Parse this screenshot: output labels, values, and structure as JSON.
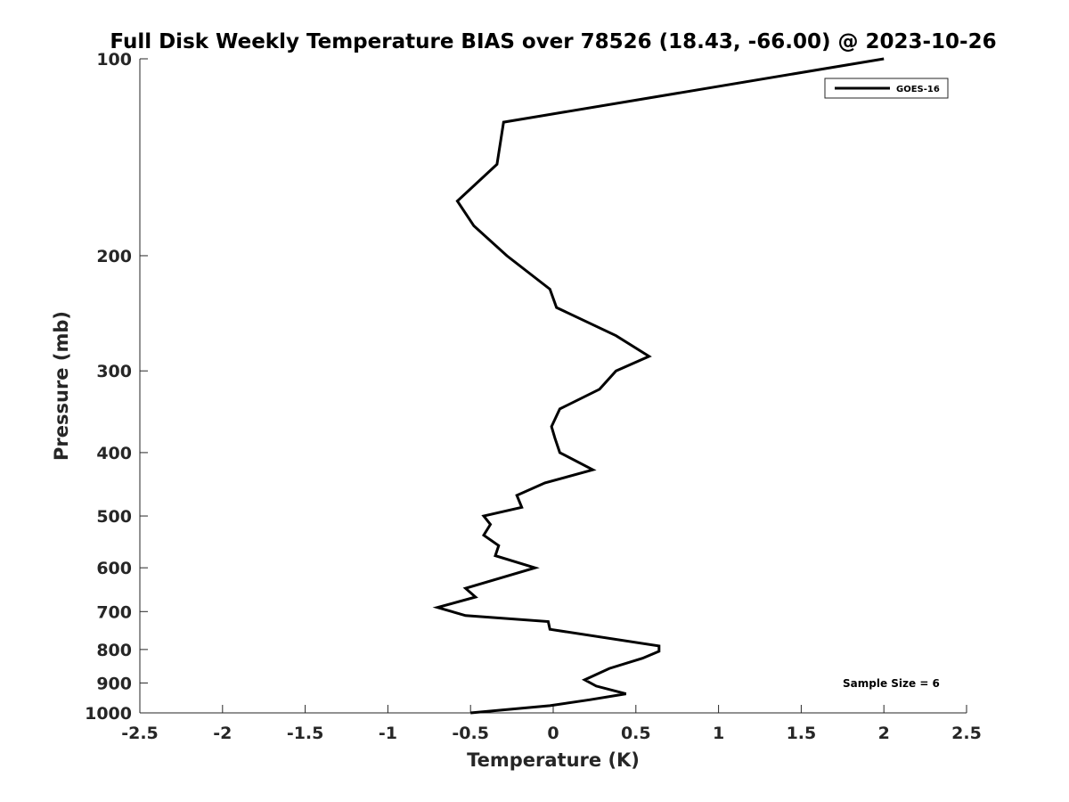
{
  "chart_data": {
    "type": "line",
    "title": "Full Disk Weekly Temperature BIAS over 78526 (18.43, -66.00) @ 2023-10-26",
    "xlabel": "Temperature (K)",
    "ylabel": "Pressure (mb)",
    "xlim": [
      -2.5,
      2.5
    ],
    "ylim": [
      1000,
      100
    ],
    "yscale": "log",
    "x_ticks": [
      "-2.5",
      "-2",
      "-1.5",
      "-1",
      "-0.5",
      "0",
      "0.5",
      "1",
      "1.5",
      "2",
      "2.5"
    ],
    "y_ticks": [
      "100",
      "200",
      "300",
      "400",
      "500",
      "600",
      "700",
      "800",
      "900",
      "1000"
    ],
    "grid": false,
    "legend_position": "top-right",
    "annotation": "Sample Size = 6",
    "line_color": "#000000",
    "series": [
      {
        "name": "GOES-16",
        "points": [
          {
            "x": 2.0,
            "y": 100
          },
          {
            "x": -0.3,
            "y": 125
          },
          {
            "x": -0.34,
            "y": 145
          },
          {
            "x": -0.58,
            "y": 165
          },
          {
            "x": -0.48,
            "y": 180
          },
          {
            "x": -0.28,
            "y": 200
          },
          {
            "x": -0.02,
            "y": 225
          },
          {
            "x": 0.02,
            "y": 240
          },
          {
            "x": 0.38,
            "y": 265
          },
          {
            "x": 0.58,
            "y": 285
          },
          {
            "x": 0.38,
            "y": 300
          },
          {
            "x": 0.28,
            "y": 320
          },
          {
            "x": 0.04,
            "y": 343
          },
          {
            "x": -0.01,
            "y": 365
          },
          {
            "x": 0.01,
            "y": 380
          },
          {
            "x": 0.04,
            "y": 400
          },
          {
            "x": 0.24,
            "y": 425
          },
          {
            "x": -0.05,
            "y": 445
          },
          {
            "x": -0.22,
            "y": 465
          },
          {
            "x": -0.19,
            "y": 485
          },
          {
            "x": -0.42,
            "y": 500
          },
          {
            "x": -0.38,
            "y": 515
          },
          {
            "x": -0.42,
            "y": 535
          },
          {
            "x": -0.33,
            "y": 555
          },
          {
            "x": -0.35,
            "y": 575
          },
          {
            "x": -0.11,
            "y": 600
          },
          {
            "x": -0.53,
            "y": 645
          },
          {
            "x": -0.47,
            "y": 665
          },
          {
            "x": -0.7,
            "y": 690
          },
          {
            "x": -0.53,
            "y": 710
          },
          {
            "x": -0.03,
            "y": 725
          },
          {
            "x": -0.02,
            "y": 745
          },
          {
            "x": 0.64,
            "y": 790
          },
          {
            "x": 0.64,
            "y": 805
          },
          {
            "x": 0.54,
            "y": 825
          },
          {
            "x": 0.34,
            "y": 855
          },
          {
            "x": 0.19,
            "y": 890
          },
          {
            "x": 0.26,
            "y": 910
          },
          {
            "x": 0.44,
            "y": 935
          },
          {
            "x": 0.22,
            "y": 955
          },
          {
            "x": -0.02,
            "y": 975
          },
          {
            "x": -0.5,
            "y": 1000
          }
        ]
      }
    ]
  }
}
